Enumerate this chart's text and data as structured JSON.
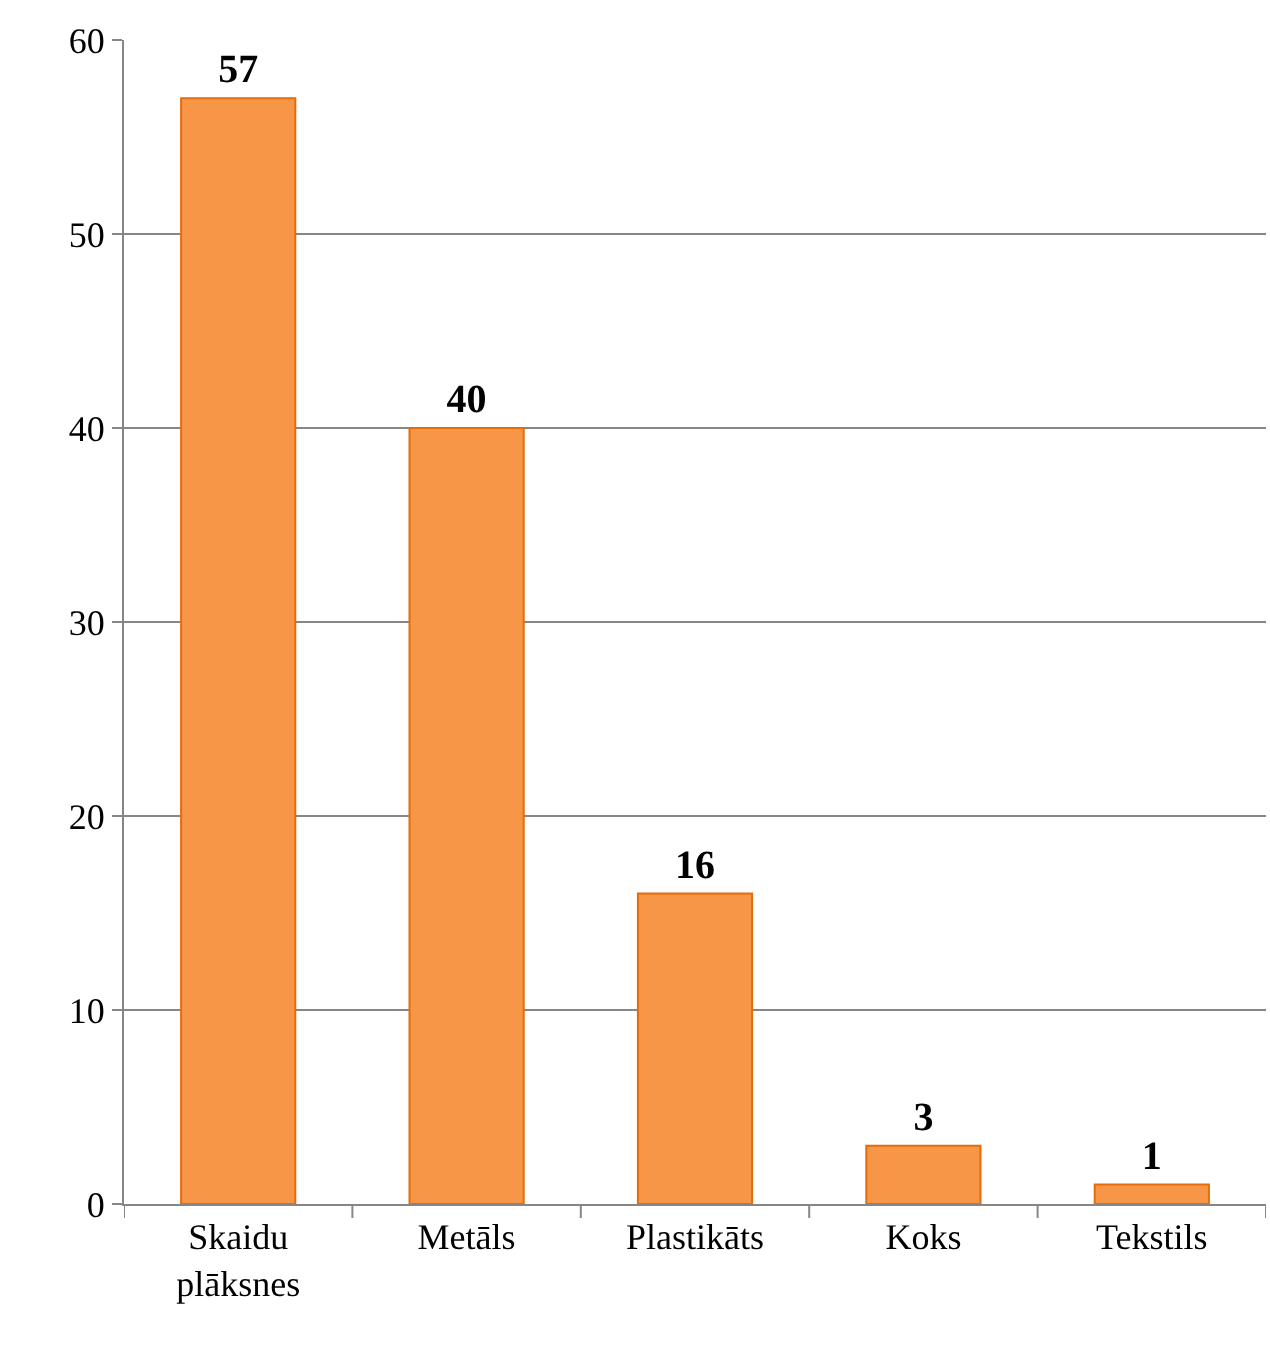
{
  "chart_data": {
    "type": "bar",
    "categories": [
      "Skaidu plāksnes",
      "Metāls",
      "Plastikāts",
      "Koks",
      "Tekstils"
    ],
    "values": [
      57,
      40,
      16,
      3,
      1
    ],
    "color": "#f79646",
    "ylim": [
      0,
      60
    ],
    "yticks": [
      0,
      10,
      20,
      30,
      40,
      50,
      60
    ],
    "grid": "y",
    "data_labels": true
  }
}
